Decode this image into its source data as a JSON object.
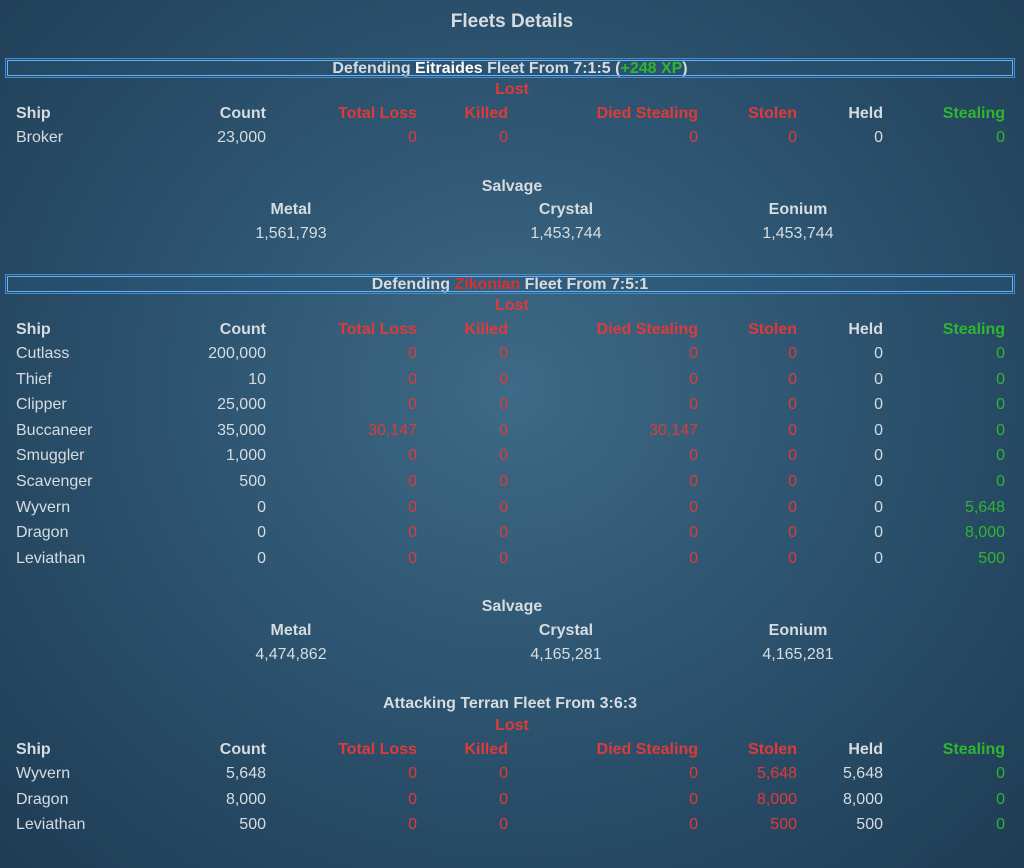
{
  "title": "Fleets Details",
  "columns": {
    "lost": "Lost",
    "ship": "Ship",
    "count": "Count",
    "total_loss": "Total Loss",
    "killed": "Killed",
    "died_stealing": "Died Stealing",
    "stolen": "Stolen",
    "held": "Held",
    "stealing": "Stealing"
  },
  "salvage_labels": {
    "title": "Salvage",
    "metal": "Metal",
    "crystal": "Crystal",
    "eonium": "Eonium"
  },
  "fleets": [
    {
      "prefix": "Defending",
      "name": "Eitraides",
      "suffix": "Fleet From 7:1:5",
      "xp_open": "(",
      "xp": "+248 XP",
      "xp_close": ")",
      "rows": [
        {
          "ship": "Broker",
          "count": "23,000",
          "total_loss": "0",
          "killed": "0",
          "died_stealing": "0",
          "stolen": "0",
          "held": "0",
          "stealing": "0"
        }
      ],
      "salvage": {
        "metal": "1,561,793",
        "crystal": "1,453,744",
        "eonium": "1,453,744"
      }
    },
    {
      "prefix": "Defending",
      "name": "Zikonian",
      "suffix": "Fleet From 7:5:1",
      "rows": [
        {
          "ship": "Cutlass",
          "count": "200,000",
          "total_loss": "0",
          "killed": "0",
          "died_stealing": "0",
          "stolen": "0",
          "held": "0",
          "stealing": "0"
        },
        {
          "ship": "Thief",
          "count": "10",
          "total_loss": "0",
          "killed": "0",
          "died_stealing": "0",
          "stolen": "0",
          "held": "0",
          "stealing": "0"
        },
        {
          "ship": "Clipper",
          "count": "25,000",
          "total_loss": "0",
          "killed": "0",
          "died_stealing": "0",
          "stolen": "0",
          "held": "0",
          "stealing": "0"
        },
        {
          "ship": "Buccaneer",
          "count": "35,000",
          "total_loss": "30,147",
          "killed": "0",
          "died_stealing": "30,147",
          "stolen": "0",
          "held": "0",
          "stealing": "0"
        },
        {
          "ship": "Smuggler",
          "count": "1,000",
          "total_loss": "0",
          "killed": "0",
          "died_stealing": "0",
          "stolen": "0",
          "held": "0",
          "stealing": "0"
        },
        {
          "ship": "Scavenger",
          "count": "500",
          "total_loss": "0",
          "killed": "0",
          "died_stealing": "0",
          "stolen": "0",
          "held": "0",
          "stealing": "0"
        },
        {
          "ship": "Wyvern",
          "count": "0",
          "total_loss": "0",
          "killed": "0",
          "died_stealing": "0",
          "stolen": "0",
          "held": "0",
          "stealing": "5,648"
        },
        {
          "ship": "Dragon",
          "count": "0",
          "total_loss": "0",
          "killed": "0",
          "died_stealing": "0",
          "stolen": "0",
          "held": "0",
          "stealing": "8,000"
        },
        {
          "ship": "Leviathan",
          "count": "0",
          "total_loss": "0",
          "killed": "0",
          "died_stealing": "0",
          "stolen": "0",
          "held": "0",
          "stealing": "500"
        }
      ],
      "salvage": {
        "metal": "4,474,862",
        "crystal": "4,165,281",
        "eonium": "4,165,281"
      }
    },
    {
      "prefix": "Attacking",
      "name": "Terran",
      "suffix": "Fleet From 3:6:3",
      "rows": [
        {
          "ship": "Wyvern",
          "count": "5,648",
          "total_loss": "0",
          "killed": "0",
          "died_stealing": "0",
          "stolen": "5,648",
          "held": "5,648",
          "stealing": "0"
        },
        {
          "ship": "Dragon",
          "count": "8,000",
          "total_loss": "0",
          "killed": "0",
          "died_stealing": "0",
          "stolen": "8,000",
          "held": "8,000",
          "stealing": "0"
        },
        {
          "ship": "Leviathan",
          "count": "500",
          "total_loss": "0",
          "killed": "0",
          "died_stealing": "0",
          "stolen": "500",
          "held": "500",
          "stealing": "0"
        }
      ]
    }
  ]
}
